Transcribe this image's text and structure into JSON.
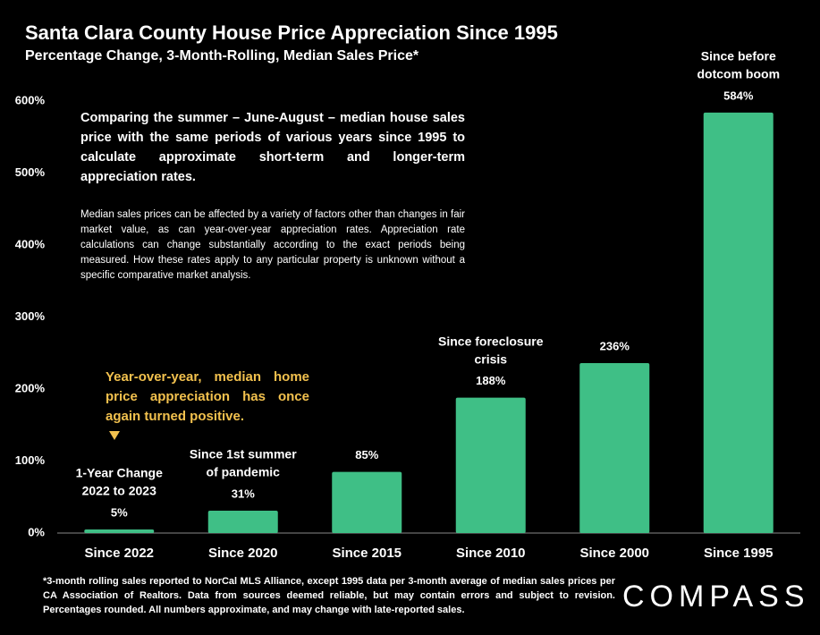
{
  "chart_data": {
    "type": "bar",
    "title": "Santa Clara County House Price Appreciation Since 1995",
    "subtitle": "Percentage Change, 3-Month-Rolling, Median Sales Price*",
    "categories": [
      "Since 2022",
      "Since 2020",
      "Since 2015",
      "Since 2010",
      "Since 2000",
      "Since 1995"
    ],
    "values": [
      5,
      31,
      85,
      188,
      236,
      584
    ],
    "value_labels": [
      "5%",
      "31%",
      "85%",
      "188%",
      "236%",
      "584%"
    ],
    "bar_notes": [
      [
        "1-Year Change",
        "2022 to 2023"
      ],
      [
        "Since 1st summer",
        "of pandemic"
      ],
      null,
      [
        "Since foreclosure",
        "crisis"
      ],
      null,
      [
        "Since before",
        "dotcom boom"
      ]
    ],
    "color": "#3fbf86",
    "ylim": [
      0,
      600
    ],
    "yticks": [
      {
        "value": 0,
        "label": "0%"
      },
      {
        "value": 100,
        "label": "100%"
      },
      {
        "value": 200,
        "label": "200%"
      },
      {
        "value": 300,
        "label": "300%"
      },
      {
        "value": 400,
        "label": "400%"
      },
      {
        "value": 500,
        "label": "500%"
      },
      {
        "value": 600,
        "label": "600%"
      }
    ],
    "grid": false,
    "intro": "Comparing the summer – June-August – median house sales price with the same periods of various years since 1995 to calculate approximate short-term and longer-term appreciation rates.",
    "disclaimer": "Median sales prices can be affected by a variety of factors other than changes in fair market value, as can year-over-year appreciation rates. Appreciation rate calculations can change substantially according to the exact periods being measured. How these rates apply to any particular property is unknown without a specific comparative market analysis.",
    "highlight": "Year-over-year, median home price appreciation has once again turned positive.",
    "footnote": "*3-month rolling sales reported to NorCal MLS Alliance, except 1995 data per 3-month average of median sales prices per CA Association of Realtors. Data from sources deemed reliable, but may contain errors and subject to revision. Percentages rounded. All numbers approximate, and may change with late-reported sales.",
    "brand": "COMPASS"
  }
}
